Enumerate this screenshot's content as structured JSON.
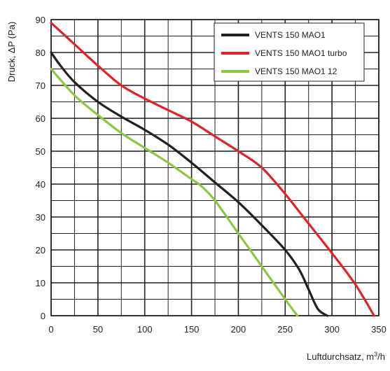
{
  "chart_data": {
    "type": "line",
    "xlabel": "Luftdurchsatz, m",
    "xlabel_sup": "3",
    "xlabel_suffix": "/h",
    "ylabel": "Druck, ΔP (Pa)",
    "xlim": [
      0,
      350
    ],
    "ylim": [
      0,
      90
    ],
    "x_ticks": [
      0,
      50,
      100,
      150,
      200,
      250,
      300,
      350
    ],
    "y_ticks": [
      0,
      10,
      20,
      30,
      40,
      50,
      60,
      70,
      80,
      90
    ],
    "grid": true,
    "legend_position": "top-right",
    "series": [
      {
        "name": "VENTS 150 MAO1",
        "color": "#231f20",
        "x": [
          0,
          10,
          25,
          50,
          75,
          100,
          125,
          150,
          175,
          200,
          225,
          250,
          265,
          275,
          285,
          295
        ],
        "y": [
          80,
          76,
          71,
          65,
          60.5,
          56.5,
          52,
          46.5,
          40.5,
          34.5,
          27.5,
          20,
          14,
          8,
          2,
          0
        ]
      },
      {
        "name": "VENTS 150 MAO1 turbo",
        "color": "#e32227",
        "x": [
          0,
          25,
          50,
          75,
          100,
          125,
          150,
          175,
          200,
          225,
          250,
          275,
          300,
          325,
          345
        ],
        "y": [
          89,
          82.5,
          76,
          70,
          66,
          62.5,
          59,
          54.5,
          50,
          45,
          37,
          28,
          19,
          9.5,
          0
        ]
      },
      {
        "name": "VENTS 150 MAO1 12",
        "color": "#8dc63f",
        "x": [
          0,
          25,
          50,
          75,
          100,
          125,
          150,
          160,
          175,
          200,
          225,
          250,
          263
        ],
        "y": [
          75,
          67,
          61,
          55.5,
          51,
          46.5,
          41.5,
          39.5,
          35,
          25,
          15,
          5,
          0
        ]
      }
    ]
  }
}
